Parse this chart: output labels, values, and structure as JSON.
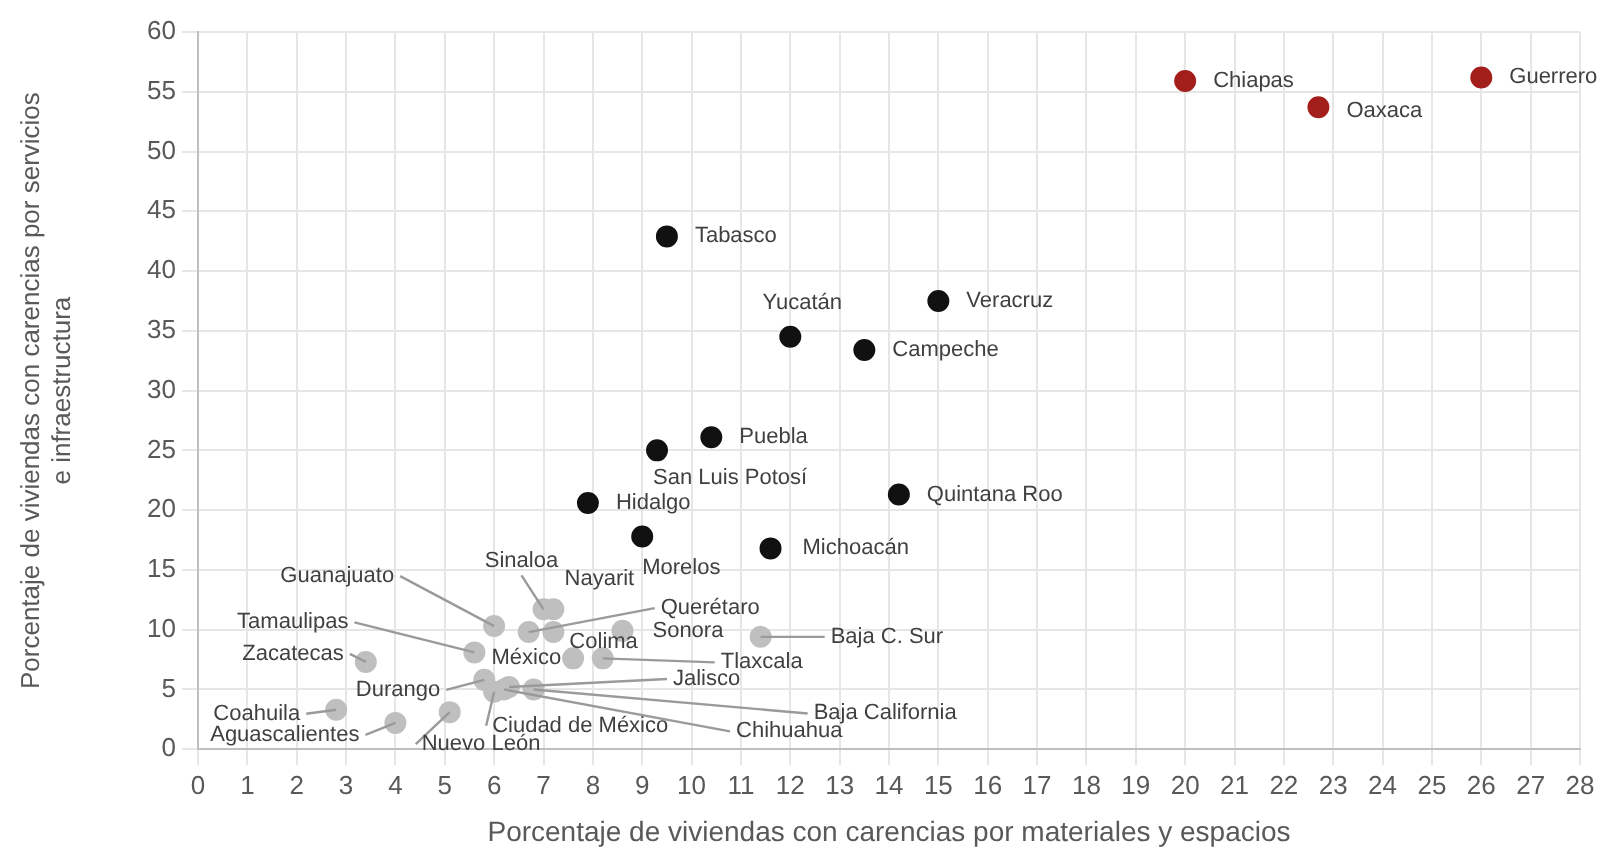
{
  "chart_data": {
    "type": "scatter",
    "xlabel": "Porcentaje de viviendas con carencias por materiales y espacios",
    "ylabel": "Porcentaje de viviendas con carencias por servicios e infraestructura",
    "xlim": [
      0,
      28
    ],
    "xticks": [
      0,
      1,
      2,
      3,
      4,
      5,
      6,
      7,
      8,
      9,
      10,
      11,
      12,
      13,
      14,
      15,
      16,
      17,
      18,
      19,
      20,
      21,
      22,
      23,
      24,
      25,
      26,
      27,
      28
    ],
    "ylim": [
      0,
      60
    ],
    "yticks": [
      0,
      5,
      10,
      15,
      20,
      25,
      30,
      35,
      40,
      45,
      50,
      55,
      60
    ],
    "grid": true,
    "legend": false,
    "marker": "circle",
    "series": [
      {
        "color": "#a31f1c",
        "x": [
          20.0,
          22.7,
          26.0
        ],
        "values": [
          55.9,
          53.7,
          56.2
        ]
      },
      {
        "color": "#111111",
        "x": [
          9.5,
          15.0,
          12.0,
          13.5,
          10.4,
          9.3,
          14.2,
          7.9,
          9.0,
          11.6
        ],
        "values": [
          42.9,
          37.5,
          34.5,
          33.4,
          26.1,
          25.0,
          21.3,
          20.6,
          17.8,
          16.8
        ]
      },
      {
        "color": "#bfbfbf",
        "x": [
          6.0,
          7.0,
          7.2,
          6.7,
          7.2,
          8.6,
          5.6,
          7.6,
          8.2,
          11.4,
          3.4,
          5.8,
          6.3,
          6.8,
          6.0,
          6.2,
          2.8,
          4.0,
          5.1
        ],
        "values": [
          10.3,
          11.7,
          11.7,
          9.8,
          9.8,
          9.9,
          8.1,
          7.6,
          7.6,
          9.4,
          7.3,
          5.8,
          5.2,
          5.0,
          4.8,
          5.0,
          3.3,
          2.2,
          3.1
        ]
      }
    ],
    "annotations": [
      {
        "text": "Chiapas",
        "x": 20.0,
        "y": 55.9
      },
      {
        "text": "Oaxaca",
        "x": 22.7,
        "y": 53.7
      },
      {
        "text": "Guerrero",
        "x": 26.0,
        "y": 56.2
      },
      {
        "text": "Tabasco",
        "x": 9.5,
        "y": 42.9
      },
      {
        "text": "Veracruz",
        "x": 15.0,
        "y": 37.5
      },
      {
        "text": "Yucatán",
        "x": 12.0,
        "y": 34.5
      },
      {
        "text": "Campeche",
        "x": 13.5,
        "y": 33.4
      },
      {
        "text": "Puebla",
        "x": 10.4,
        "y": 26.1
      },
      {
        "text": "San Luis Potosí",
        "x": 9.3,
        "y": 25.0
      },
      {
        "text": "Quintana Roo",
        "x": 14.2,
        "y": 21.3
      },
      {
        "text": "Hidalgo",
        "x": 7.9,
        "y": 20.6
      },
      {
        "text": "Morelos",
        "x": 9.0,
        "y": 17.8
      },
      {
        "text": "Michoacán",
        "x": 11.6,
        "y": 16.8
      },
      {
        "text": "Guanajuato",
        "x": 6.0,
        "y": 10.3
      },
      {
        "text": "Sinaloa",
        "x": 7.0,
        "y": 11.7
      },
      {
        "text": "Nayarit",
        "x": 7.2,
        "y": 11.7
      },
      {
        "text": "Querétaro",
        "x": 6.7,
        "y": 9.8
      },
      {
        "text": "Colima",
        "x": 7.2,
        "y": 9.8
      },
      {
        "text": "Sonora",
        "x": 8.6,
        "y": 9.9
      },
      {
        "text": "Tamaulipas",
        "x": 5.6,
        "y": 8.1
      },
      {
        "text": "México",
        "x": 7.6,
        "y": 7.6
      },
      {
        "text": "Tlaxcala",
        "x": 8.2,
        "y": 7.6
      },
      {
        "text": "Baja C. Sur",
        "x": 11.4,
        "y": 9.4
      },
      {
        "text": "Zacatecas",
        "x": 3.4,
        "y": 7.3
      },
      {
        "text": "Durango",
        "x": 5.8,
        "y": 5.8
      },
      {
        "text": "Jalisco",
        "x": 6.3,
        "y": 5.2
      },
      {
        "text": "Baja California",
        "x": 6.8,
        "y": 5.0
      },
      {
        "text": "Ciudad de México",
        "x": 6.0,
        "y": 4.8
      },
      {
        "text": "Chihuahua",
        "x": 6.2,
        "y": 5.0
      },
      {
        "text": "Coahuila",
        "x": 2.8,
        "y": 3.3
      },
      {
        "text": "Aguascalientes",
        "x": 4.0,
        "y": 2.2
      },
      {
        "text": "Nuevo León",
        "x": 5.1,
        "y": 3.1
      }
    ]
  }
}
